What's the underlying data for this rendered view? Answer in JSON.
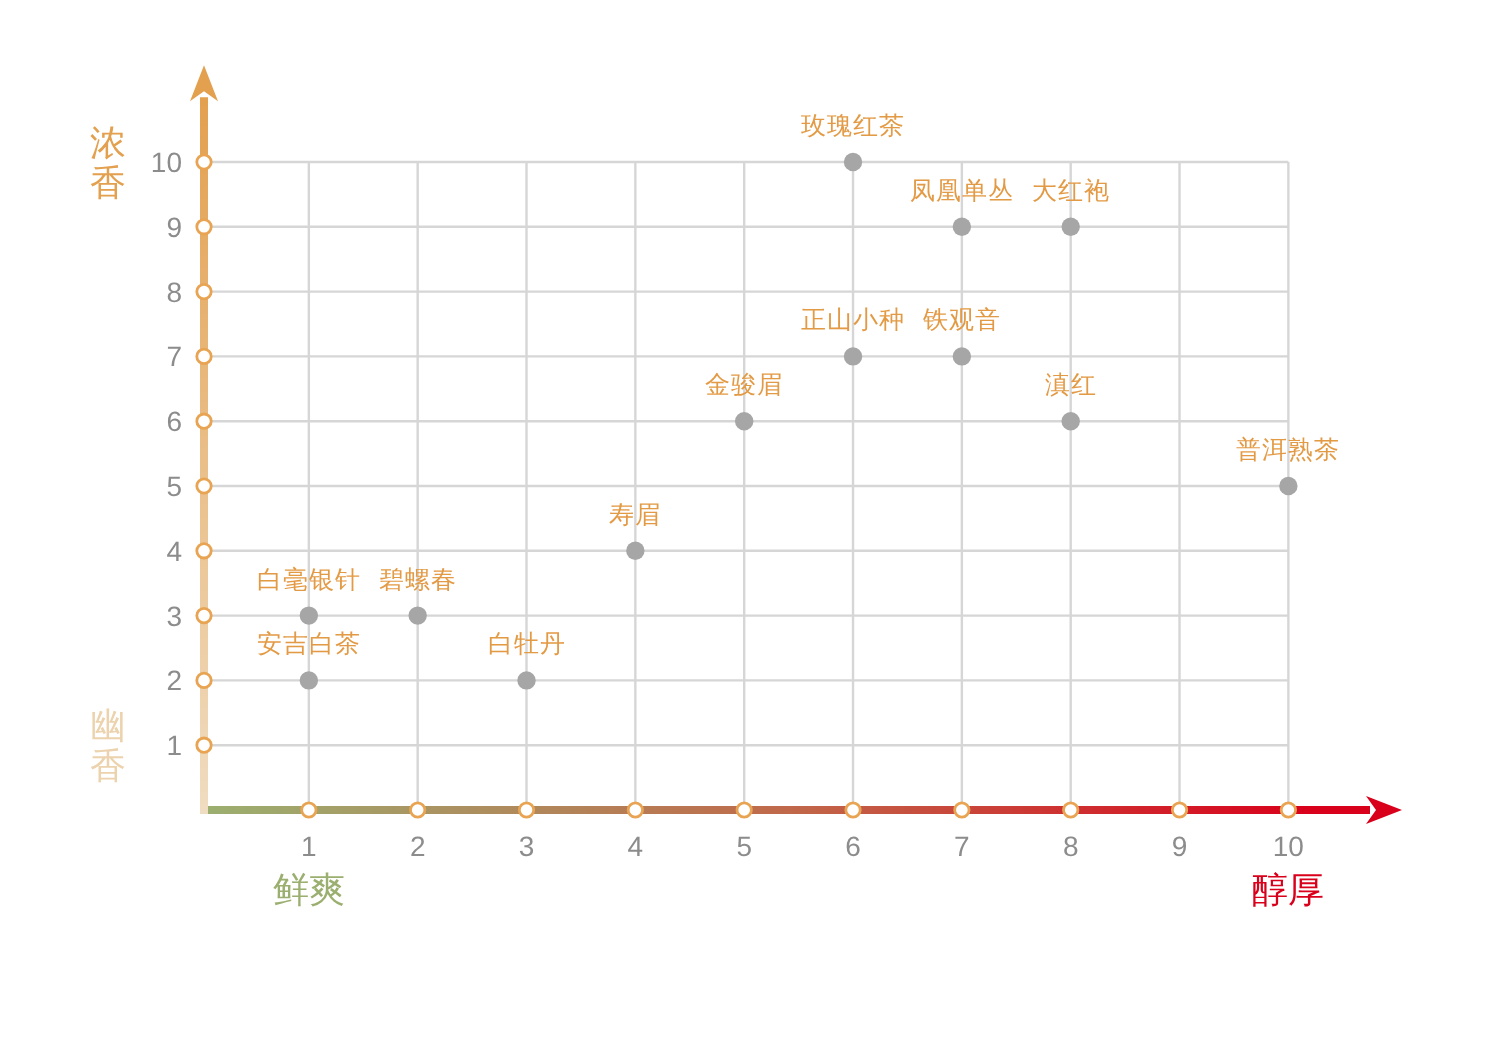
{
  "chart_data": {
    "type": "scatter",
    "xlabel": "醇厚",
    "ylabel": "浓香",
    "x": [
      1,
      1,
      2,
      3,
      4,
      5,
      6,
      6,
      7,
      7,
      8,
      8,
      10
    ],
    "values": [
      3,
      2,
      3,
      2,
      4,
      6,
      10,
      7,
      7,
      9,
      9,
      6,
      5
    ],
    "color": "#a6a6a6",
    "marker": "circle",
    "xlim": [
      0,
      10.75
    ],
    "ylim": [
      0,
      11
    ],
    "xticks": [
      1,
      2,
      3,
      4,
      5,
      6,
      7,
      8,
      9,
      10
    ],
    "yticks": [
      1,
      2,
      3,
      4,
      5,
      6,
      7,
      8,
      9,
      10
    ],
    "grid": true,
    "annotations": [
      "幽香",
      "鲜爽",
      {
        "text": "白毫银针",
        "x": 1,
        "y": 3
      },
      {
        "text": "安吉白茶",
        "x": 1,
        "y": 2
      },
      {
        "text": "碧螺春",
        "x": 2,
        "y": 3
      },
      {
        "text": "白牡丹",
        "x": 3,
        "y": 2
      },
      {
        "text": "寿眉",
        "x": 4,
        "y": 4
      },
      {
        "text": "金骏眉",
        "x": 5,
        "y": 6
      },
      {
        "text": "玫瑰红茶",
        "x": 6,
        "y": 10
      },
      {
        "text": "正山小种",
        "x": 6,
        "y": 7
      },
      {
        "text": "铁观音",
        "x": 7,
        "y": 7
      },
      {
        "text": "凤凰单丛",
        "x": 7,
        "y": 9
      },
      {
        "text": "大红袍",
        "x": 8,
        "y": 9
      },
      {
        "text": "滇红",
        "x": 8,
        "y": 6
      },
      {
        "text": "普洱熟茶",
        "x": 10,
        "y": 5
      }
    ]
  }
}
